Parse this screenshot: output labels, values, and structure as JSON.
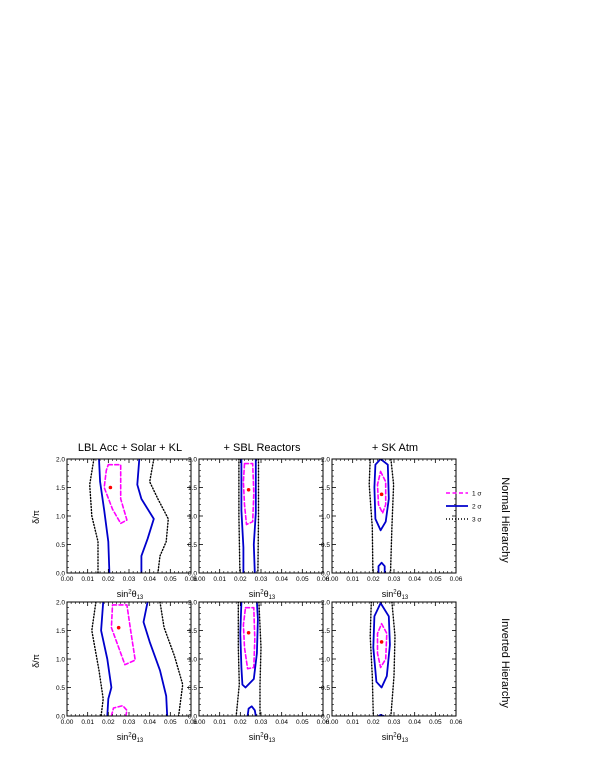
{
  "chart_data": {
    "type": "contour",
    "columns": [
      "LBL Acc + Solar + KL",
      "+ SBL Reactors",
      "+ SK Atm"
    ],
    "rows": [
      "Normal Hierarchy",
      "Inverted Hierarchy"
    ],
    "xlabel_main": "sin",
    "xlabel_sup": "2",
    "xlabel_theta": "θ",
    "xlabel_sub": "13",
    "ylabel": "δ/π",
    "xlim": [
      0,
      0.06
    ],
    "ylim": [
      0,
      2
    ],
    "xticks": [
      "0.00",
      "0.01",
      "0.02",
      "0.03",
      "0.04",
      "0.05",
      "0.06"
    ],
    "yticks": [
      "0.0",
      "0.5",
      "1.0",
      "1.5",
      "2.0"
    ],
    "legend": {
      "placement": "inside top-right of Normal Hierarchy / + SK Atm panel",
      "entries": [
        {
          "label": "1 σ",
          "color": "#ff00ff",
          "dash": "dashed"
        },
        {
          "label": "2 σ",
          "color": "#0000cc",
          "dash": "solid"
        },
        {
          "label": "3 σ",
          "color": "#000000",
          "dash": "dotted"
        }
      ]
    },
    "colors": {
      "sigma1": "#ff00ff",
      "sigma2": "#0000cc",
      "sigma3": "#000000",
      "bestfit": "#ff0000"
    },
    "panels": [
      {
        "id": "nh-lbl",
        "row": 0,
        "col": 0,
        "bestfit": [
          0.021,
          1.5
        ],
        "contours": [
          {
            "level": "1 σ",
            "points": [
              [
                0.02,
                1.9
              ],
              [
                0.026,
                1.9
              ],
              [
                0.026,
                1.3
              ],
              [
                0.029,
                0.93
              ],
              [
                0.026,
                0.87
              ],
              [
                0.022,
                1.12
              ],
              [
                0.018,
                1.5
              ],
              [
                0.019,
                1.8
              ],
              [
                0.02,
                1.9
              ]
            ]
          },
          {
            "level": "2 σ",
            "points": [
              [
                0.0155,
                2.0
              ],
              [
                0.016,
                1.6
              ],
              [
                0.018,
                1.1
              ],
              [
                0.02,
                0.55
              ],
              [
                0.0205,
                0.0
              ]
            ]
          },
          {
            "level": "2 σ",
            "points": [
              [
                0.035,
                2.0
              ],
              [
                0.034,
                1.55
              ],
              [
                0.036,
                1.3
              ],
              [
                0.042,
                0.95
              ],
              [
                0.039,
                0.6
              ],
              [
                0.036,
                0.3
              ],
              [
                0.036,
                0.0
              ]
            ]
          },
          {
            "level": "3 σ",
            "points": [
              [
                0.013,
                2.0
              ],
              [
                0.011,
                1.55
              ],
              [
                0.012,
                1.0
              ],
              [
                0.015,
                0.55
              ],
              [
                0.015,
                0.0
              ]
            ]
          },
          {
            "level": "3 σ",
            "points": [
              [
                0.042,
                2.0
              ],
              [
                0.04,
                1.6
              ],
              [
                0.044,
                1.3
              ],
              [
                0.049,
                0.95
              ],
              [
                0.048,
                0.55
              ],
              [
                0.045,
                0.3
              ],
              [
                0.044,
                0.0
              ]
            ]
          }
        ]
      },
      {
        "id": "nh-sbl",
        "row": 0,
        "col": 1,
        "bestfit": [
          0.024,
          1.46
        ],
        "contours": [
          {
            "level": "1 σ",
            "points": [
              [
                0.022,
                1.92
              ],
              [
                0.026,
                1.92
              ],
              [
                0.0265,
                1.4
              ],
              [
                0.026,
                0.9
              ],
              [
                0.023,
                0.85
              ],
              [
                0.022,
                1.2
              ],
              [
                0.0215,
                1.6
              ],
              [
                0.022,
                1.92
              ]
            ]
          },
          {
            "level": "2 σ",
            "points": [
              [
                0.0205,
                2.0
              ],
              [
                0.0205,
                1.1
              ],
              [
                0.0215,
                0.45
              ],
              [
                0.0215,
                0.0
              ]
            ]
          },
          {
            "level": "2 σ",
            "points": [
              [
                0.0275,
                2.0
              ],
              [
                0.0275,
                1.05
              ],
              [
                0.0265,
                0.5
              ],
              [
                0.027,
                0.0
              ]
            ]
          },
          {
            "level": "3 σ",
            "points": [
              [
                0.0193,
                2.0
              ],
              [
                0.0193,
                1.0
              ],
              [
                0.0198,
                0.0
              ]
            ]
          },
          {
            "level": "3 σ",
            "points": [
              [
                0.0288,
                2.0
              ],
              [
                0.0288,
                1.0
              ],
              [
                0.0285,
                0.0
              ]
            ]
          }
        ]
      },
      {
        "id": "nh-sk",
        "row": 0,
        "col": 2,
        "bestfit": [
          0.024,
          1.38
        ],
        "contours": [
          {
            "level": "1 σ",
            "points": [
              [
                0.0235,
                1.78
              ],
              [
                0.026,
                1.6
              ],
              [
                0.026,
                1.2
              ],
              [
                0.0245,
                1.05
              ],
              [
                0.0225,
                1.2
              ],
              [
                0.022,
                1.55
              ],
              [
                0.0235,
                1.78
              ]
            ]
          },
          {
            "level": "2 σ",
            "points": [
              [
                0.0235,
                2.0
              ],
              [
                0.027,
                1.9
              ],
              [
                0.0275,
                1.3
              ],
              [
                0.026,
                0.9
              ],
              [
                0.0235,
                0.75
              ],
              [
                0.021,
                0.95
              ],
              [
                0.0205,
                1.5
              ],
              [
                0.021,
                1.9
              ],
              [
                0.0235,
                2.0
              ]
            ]
          },
          {
            "level": "2 σ",
            "points": [
              [
                0.0225,
                0.0
              ],
              [
                0.0225,
                0.12
              ],
              [
                0.024,
                0.18
              ],
              [
                0.0255,
                0.12
              ],
              [
                0.0255,
                0.0
              ]
            ]
          },
          {
            "level": "3 σ",
            "points": [
              [
                0.0185,
                2.0
              ],
              [
                0.018,
                1.55
              ],
              [
                0.0195,
                0.8
              ],
              [
                0.0198,
                0.0
              ]
            ]
          },
          {
            "level": "3 σ",
            "points": [
              [
                0.0285,
                2.0
              ],
              [
                0.0298,
                1.55
              ],
              [
                0.029,
                0.8
              ],
              [
                0.0283,
                0.0
              ]
            ]
          }
        ]
      },
      {
        "id": "ih-lbl",
        "row": 1,
        "col": 0,
        "bestfit": [
          0.025,
          1.55
        ],
        "contours": [
          {
            "level": "1 σ",
            "points": [
              [
                0.022,
                1.95
              ],
              [
                0.029,
                1.95
              ],
              [
                0.031,
                1.45
              ],
              [
                0.033,
                0.98
              ],
              [
                0.028,
                0.9
              ],
              [
                0.025,
                1.2
              ],
              [
                0.0215,
                1.55
              ],
              [
                0.022,
                1.95
              ]
            ]
          },
          {
            "level": "1 σ",
            "points": [
              [
                0.0215,
                0.0
              ],
              [
                0.0225,
                0.14
              ],
              [
                0.027,
                0.18
              ],
              [
                0.029,
                0.1
              ],
              [
                0.0285,
                0.0
              ]
            ]
          },
          {
            "level": "2 σ",
            "points": [
              [
                0.0175,
                2.0
              ],
              [
                0.0165,
                1.5
              ],
              [
                0.0195,
                1.0
              ],
              [
                0.0215,
                0.5
              ],
              [
                0.02,
                0.3
              ],
              [
                0.0195,
                0.0
              ]
            ]
          },
          {
            "level": "2 σ",
            "points": [
              [
                0.039,
                2.0
              ],
              [
                0.037,
                1.65
              ],
              [
                0.04,
                1.3
              ],
              [
                0.045,
                0.8
              ],
              [
                0.048,
                0.35
              ],
              [
                0.0485,
                0.0
              ]
            ]
          },
          {
            "level": "3 σ",
            "points": [
              [
                0.014,
                2.0
              ],
              [
                0.012,
                1.5
              ],
              [
                0.0155,
                0.8
              ],
              [
                0.0175,
                0.3
              ],
              [
                0.0165,
                0.0
              ]
            ]
          },
          {
            "level": "3 σ",
            "points": [
              [
                0.045,
                2.0
              ],
              [
                0.047,
                1.55
              ],
              [
                0.052,
                1.05
              ],
              [
                0.056,
                0.55
              ],
              [
                0.054,
                0.0
              ]
            ]
          }
        ]
      },
      {
        "id": "ih-sbl",
        "row": 1,
        "col": 1,
        "bestfit": [
          0.024,
          1.46
        ],
        "contours": [
          {
            "level": "1 σ",
            "points": [
              [
                0.0225,
                1.9
              ],
              [
                0.0265,
                1.9
              ],
              [
                0.027,
                1.35
              ],
              [
                0.0265,
                0.85
              ],
              [
                0.0235,
                0.83
              ],
              [
                0.022,
                1.2
              ],
              [
                0.0215,
                1.6
              ],
              [
                0.0225,
                1.9
              ]
            ]
          },
          {
            "level": "2 σ",
            "points": [
              [
                0.0205,
                2.0
              ],
              [
                0.02,
                1.45
              ],
              [
                0.0205,
                0.85
              ],
              [
                0.021,
                0.55
              ],
              [
                0.0225,
                0.5
              ],
              [
                0.0265,
                0.65
              ],
              [
                0.028,
                1.1
              ],
              [
                0.0285,
                1.7
              ],
              [
                0.028,
                2.0
              ]
            ]
          },
          {
            "level": "2 σ",
            "points": [
              [
                0.0235,
                0.0
              ],
              [
                0.024,
                0.13
              ],
              [
                0.0255,
                0.17
              ],
              [
                0.027,
                0.1
              ],
              [
                0.0275,
                0.0
              ]
            ]
          },
          {
            "level": "3 σ",
            "points": [
              [
                0.019,
                2.0
              ],
              [
                0.019,
                1.2
              ],
              [
                0.0195,
                0.55
              ],
              [
                0.018,
                0.0
              ]
            ]
          },
          {
            "level": "3 σ",
            "points": [
              [
                0.029,
                2.0
              ],
              [
                0.03,
                1.2
              ],
              [
                0.0295,
                0.55
              ],
              [
                0.0295,
                0.0
              ]
            ]
          }
        ]
      },
      {
        "id": "ih-sk",
        "row": 1,
        "col": 2,
        "bestfit": [
          0.024,
          1.3
        ],
        "contours": [
          {
            "level": "1 σ",
            "points": [
              [
                0.024,
                1.62
              ],
              [
                0.0265,
                1.45
              ],
              [
                0.026,
                1.0
              ],
              [
                0.0235,
                0.85
              ],
              [
                0.022,
                1.1
              ],
              [
                0.022,
                1.45
              ],
              [
                0.024,
                1.62
              ]
            ]
          },
          {
            "level": "2 σ",
            "points": [
              [
                0.0235,
                1.98
              ],
              [
                0.0275,
                1.75
              ],
              [
                0.028,
                1.25
              ],
              [
                0.0265,
                0.7
              ],
              [
                0.024,
                0.5
              ],
              [
                0.0215,
                0.6
              ],
              [
                0.02,
                1.2
              ],
              [
                0.0205,
                1.75
              ],
              [
                0.0235,
                1.98
              ]
            ]
          },
          {
            "level": "2 σ",
            "points": [
              [
                0.0225,
                0.0
              ],
              [
                0.0235,
                0.02
              ],
              [
                0.025,
                0.0
              ]
            ]
          },
          {
            "level": "3 σ",
            "points": [
              [
                0.019,
                2.0
              ],
              [
                0.0185,
                1.4
              ],
              [
                0.0195,
                0.7
              ],
              [
                0.02,
                0.0
              ]
            ]
          },
          {
            "level": "3 σ",
            "points": [
              [
                0.029,
                2.0
              ],
              [
                0.0305,
                1.4
              ],
              [
                0.03,
                0.7
              ],
              [
                0.0285,
                0.0
              ]
            ]
          }
        ]
      }
    ]
  }
}
